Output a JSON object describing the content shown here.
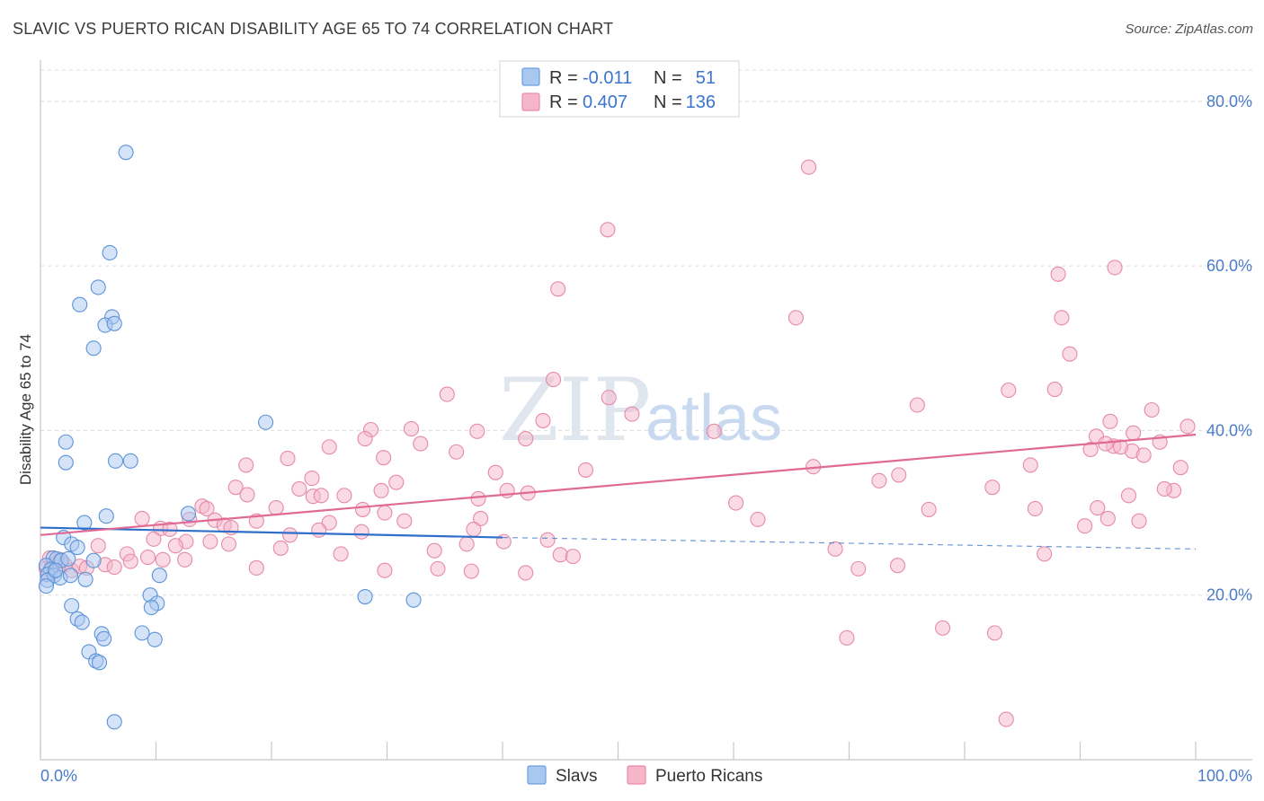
{
  "header": {
    "title": "SLAVIC VS PUERTO RICAN DISABILITY AGE 65 TO 74 CORRELATION CHART",
    "source": "Source: ZipAtlas.com"
  },
  "watermark": {
    "zip": "ZIP",
    "atlas": "atlas"
  },
  "legend": {
    "rows": [
      {
        "r_label": "R =",
        "r_value": "-0.011",
        "n_label": "N =",
        "n_value": "51",
        "color": "#a9c8f0",
        "stroke": "#6a9fe0"
      },
      {
        "r_label": "R =",
        "r_value": "0.407",
        "n_label": "N =",
        "n_value": "136",
        "color": "#f6b6c9",
        "stroke": "#e98aa8"
      }
    ]
  },
  "bottom_legend": {
    "slavs": "Slavs",
    "puerto_ricans": "Puerto Ricans"
  },
  "colors": {
    "slavs_fill": "#a9c8f0",
    "slavs_stroke": "#5b93d8",
    "slavs_line": "#2f6fc9",
    "pr_fill": "#f6b6c9",
    "pr_stroke": "#e68aa6",
    "pr_line": "#e06a96",
    "tick": "#4a7cc9"
  },
  "chart_data": {
    "type": "scatter",
    "title": "SLAVIC VS PUERTO RICAN DISABILITY AGE 65 TO 74 CORRELATION CHART",
    "xlabel": "",
    "ylabel": "Disability Age 65 to 74",
    "xlim": [
      0,
      100
    ],
    "ylim": [
      0,
      85
    ],
    "x_tick_labels": [
      "0.0%",
      "100.0%"
    ],
    "y_ticks": [
      20,
      40,
      60,
      80
    ],
    "y_tick_labels": [
      "20.0%",
      "40.0%",
      "60.0%",
      "80.0%"
    ],
    "grid": true,
    "legend_position": "top-center",
    "series": [
      {
        "name": "Slavs",
        "r": -0.011,
        "n": 51,
        "trend": {
          "x_start": 0,
          "y_start": 28.2,
          "x_end": 40,
          "y_end": 27.0,
          "dashed_to_x": 100,
          "dashed_to_y": 25.6
        },
        "points": [
          [
            7.4,
            73.8
          ],
          [
            6.0,
            61.6
          ],
          [
            5.0,
            57.4
          ],
          [
            3.4,
            55.3
          ],
          [
            6.2,
            53.8
          ],
          [
            5.6,
            52.8
          ],
          [
            6.4,
            53.0
          ],
          [
            4.6,
            50.0
          ],
          [
            19.5,
            41.0
          ],
          [
            2.2,
            38.6
          ],
          [
            2.2,
            36.1
          ],
          [
            6.5,
            36.3
          ],
          [
            7.8,
            36.3
          ],
          [
            12.8,
            29.9
          ],
          [
            5.7,
            29.6
          ],
          [
            3.8,
            28.8
          ],
          [
            2.0,
            27.0
          ],
          [
            2.7,
            26.2
          ],
          [
            3.2,
            25.8
          ],
          [
            1.1,
            24.5
          ],
          [
            1.4,
            24.4
          ],
          [
            1.8,
            24.2
          ],
          [
            2.4,
            24.4
          ],
          [
            4.6,
            24.2
          ],
          [
            0.5,
            23.6
          ],
          [
            0.9,
            23.1
          ],
          [
            0.6,
            22.5
          ],
          [
            1.2,
            22.4
          ],
          [
            1.7,
            22.1
          ],
          [
            0.6,
            21.8
          ],
          [
            3.9,
            21.9
          ],
          [
            10.3,
            22.4
          ],
          [
            0.5,
            21.1
          ],
          [
            2.6,
            22.4
          ],
          [
            28.1,
            19.8
          ],
          [
            32.3,
            19.4
          ],
          [
            9.5,
            20.0
          ],
          [
            10.1,
            19.0
          ],
          [
            9.6,
            18.5
          ],
          [
            2.7,
            18.7
          ],
          [
            3.2,
            17.1
          ],
          [
            3.6,
            16.7
          ],
          [
            5.3,
            15.3
          ],
          [
            5.5,
            14.7
          ],
          [
            8.8,
            15.4
          ],
          [
            9.9,
            14.6
          ],
          [
            4.2,
            13.1
          ],
          [
            4.8,
            12.0
          ],
          [
            5.1,
            11.8
          ],
          [
            6.4,
            4.6
          ],
          [
            1.3,
            23.0
          ]
        ]
      },
      {
        "name": "Puerto Ricans",
        "r": 0.407,
        "n": 136,
        "trend": {
          "x_start": 0,
          "y_start": 27.3,
          "x_end": 100,
          "y_end": 39.5
        },
        "points": [
          [
            66.5,
            72.0
          ],
          [
            49.1,
            64.4
          ],
          [
            44.8,
            57.2
          ],
          [
            93.0,
            59.8
          ],
          [
            88.1,
            59.0
          ],
          [
            65.4,
            53.7
          ],
          [
            88.4,
            53.7
          ],
          [
            89.1,
            49.3
          ],
          [
            44.4,
            46.2
          ],
          [
            87.8,
            45.0
          ],
          [
            83.8,
            44.9
          ],
          [
            35.2,
            44.4
          ],
          [
            49.2,
            44.0
          ],
          [
            75.9,
            43.1
          ],
          [
            96.2,
            42.5
          ],
          [
            51.2,
            42.0
          ],
          [
            43.5,
            41.2
          ],
          [
            92.6,
            41.1
          ],
          [
            99.3,
            40.5
          ],
          [
            28.6,
            40.1
          ],
          [
            32.1,
            40.2
          ],
          [
            37.8,
            39.9
          ],
          [
            58.3,
            39.9
          ],
          [
            94.6,
            39.7
          ],
          [
            28.1,
            39.0
          ],
          [
            42.0,
            39.0
          ],
          [
            91.4,
            39.3
          ],
          [
            96.9,
            38.6
          ],
          [
            32.9,
            38.4
          ],
          [
            25.0,
            38.0
          ],
          [
            92.9,
            38.1
          ],
          [
            36.0,
            37.4
          ],
          [
            90.9,
            37.7
          ],
          [
            94.5,
            37.5
          ],
          [
            21.4,
            36.6
          ],
          [
            29.7,
            36.7
          ],
          [
            95.5,
            37.0
          ],
          [
            92.2,
            38.4
          ],
          [
            93.5,
            38.0
          ],
          [
            17.8,
            35.8
          ],
          [
            66.9,
            35.6
          ],
          [
            85.7,
            35.8
          ],
          [
            98.7,
            35.5
          ],
          [
            47.2,
            35.2
          ],
          [
            39.4,
            34.9
          ],
          [
            23.5,
            34.2
          ],
          [
            74.3,
            34.6
          ],
          [
            72.6,
            33.9
          ],
          [
            30.8,
            33.7
          ],
          [
            16.9,
            33.1
          ],
          [
            22.4,
            32.9
          ],
          [
            29.5,
            32.7
          ],
          [
            40.4,
            32.7
          ],
          [
            42.2,
            32.4
          ],
          [
            94.2,
            32.1
          ],
          [
            98.1,
            32.7
          ],
          [
            82.4,
            33.1
          ],
          [
            97.3,
            32.9
          ],
          [
            17.9,
            32.2
          ],
          [
            23.6,
            32.0
          ],
          [
            24.3,
            32.1
          ],
          [
            26.3,
            32.1
          ],
          [
            37.9,
            31.7
          ],
          [
            60.2,
            31.2
          ],
          [
            14.0,
            30.8
          ],
          [
            14.4,
            30.5
          ],
          [
            20.4,
            30.6
          ],
          [
            27.9,
            30.4
          ],
          [
            29.8,
            30.0
          ],
          [
            76.9,
            30.4
          ],
          [
            86.1,
            30.5
          ],
          [
            91.5,
            30.6
          ],
          [
            12.9,
            29.2
          ],
          [
            15.1,
            29.1
          ],
          [
            18.7,
            29.0
          ],
          [
            25.0,
            28.8
          ],
          [
            31.5,
            29.0
          ],
          [
            38.1,
            29.3
          ],
          [
            62.1,
            29.2
          ],
          [
            92.4,
            29.3
          ],
          [
            95.1,
            29.0
          ],
          [
            8.8,
            29.3
          ],
          [
            10.4,
            28.1
          ],
          [
            11.2,
            28.0
          ],
          [
            15.9,
            28.5
          ],
          [
            16.5,
            28.2
          ],
          [
            24.1,
            27.9
          ],
          [
            37.5,
            28.0
          ],
          [
            90.4,
            28.4
          ],
          [
            21.6,
            27.3
          ],
          [
            27.8,
            27.7
          ],
          [
            9.8,
            26.8
          ],
          [
            12.6,
            26.5
          ],
          [
            11.7,
            26.0
          ],
          [
            14.7,
            26.5
          ],
          [
            16.3,
            26.2
          ],
          [
            36.9,
            26.2
          ],
          [
            40.1,
            26.5
          ],
          [
            43.9,
            26.7
          ],
          [
            20.8,
            25.7
          ],
          [
            34.1,
            25.4
          ],
          [
            68.8,
            25.6
          ],
          [
            5.0,
            26.0
          ],
          [
            7.5,
            25.0
          ],
          [
            9.3,
            24.6
          ],
          [
            10.6,
            24.3
          ],
          [
            12.5,
            24.3
          ],
          [
            26.0,
            25.0
          ],
          [
            45.0,
            24.9
          ],
          [
            46.1,
            24.7
          ],
          [
            70.8,
            23.2
          ],
          [
            74.2,
            23.6
          ],
          [
            78.1,
            16.0
          ],
          [
            82.6,
            15.4
          ],
          [
            69.8,
            14.8
          ],
          [
            83.6,
            4.9
          ],
          [
            0.8,
            24.5
          ],
          [
            1.0,
            23.6
          ],
          [
            1.3,
            23.1
          ],
          [
            1.7,
            24.3
          ],
          [
            2.1,
            23.7
          ],
          [
            2.7,
            23.0
          ],
          [
            3.4,
            23.5
          ],
          [
            4.0,
            23.3
          ],
          [
            5.6,
            23.7
          ],
          [
            6.4,
            23.4
          ],
          [
            7.8,
            24.1
          ],
          [
            18.7,
            23.3
          ],
          [
            29.8,
            23.0
          ],
          [
            34.4,
            23.2
          ],
          [
            37.3,
            22.9
          ],
          [
            42.0,
            22.7
          ],
          [
            86.9,
            25.0
          ],
          [
            0.5,
            23.2
          ],
          [
            0.7,
            22.6
          ],
          [
            1.1,
            22.8
          ]
        ]
      }
    ]
  }
}
